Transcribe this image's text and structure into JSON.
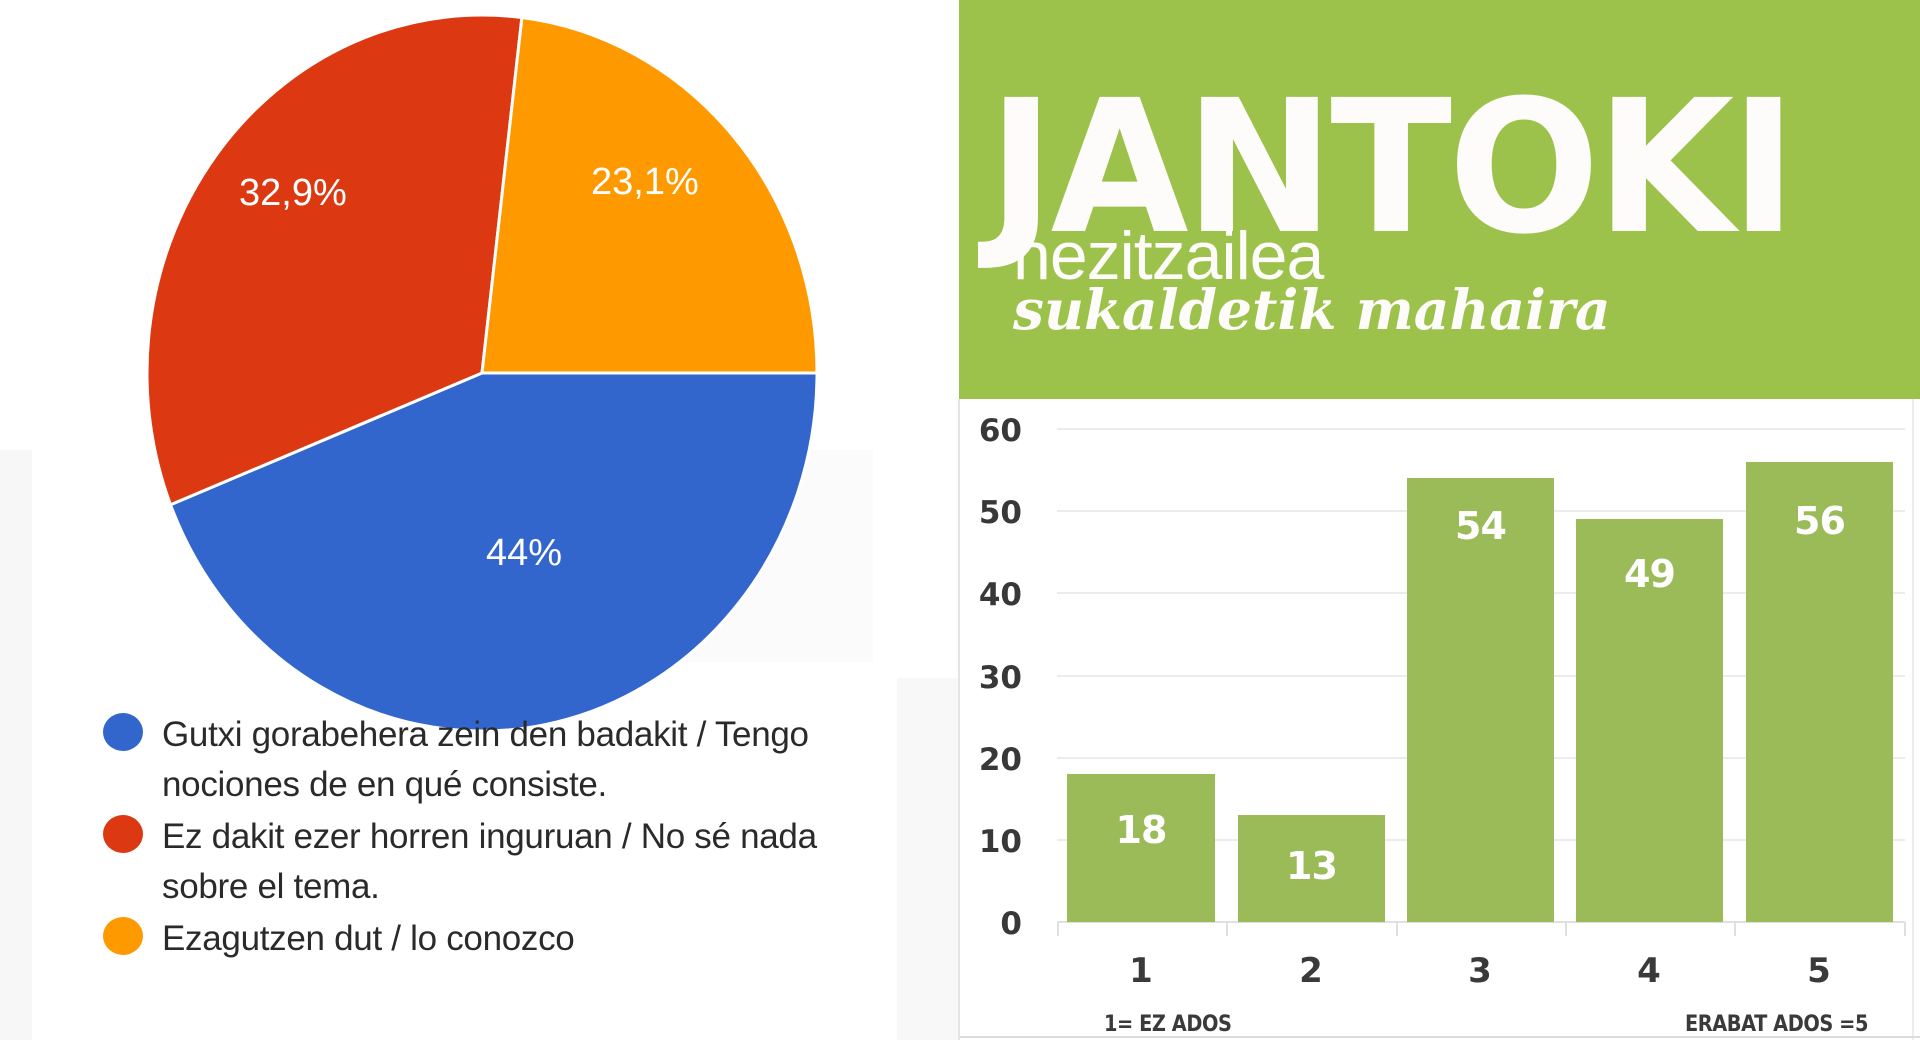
{
  "pie": {
    "slices": [
      {
        "label": "44%",
        "value": 44.0,
        "color": "#3366cc"
      },
      {
        "label": "32,9%",
        "value": 32.9,
        "color": "#dc3912"
      },
      {
        "label": "23,1%",
        "value": 23.1,
        "color": "#ff9900"
      }
    ],
    "legend": [
      {
        "text": "Gutxi gorabehera zein den badakit / Tengo nociones de en qué consiste.",
        "color": "#3366cc"
      },
      {
        "text": "Ez dakit ezer horren inguruan / No sé nada sobre el tema.",
        "color": "#dc3912"
      },
      {
        "text": "Ezagutzen dut / lo conozco",
        "color": "#ff9900"
      }
    ]
  },
  "brand": {
    "title": "JANTOKI",
    "subtitle": "hezitzailea",
    "tagline": "sukaldetik mahaira",
    "color": "#9cc24c"
  },
  "bar": {
    "y_ticks": [
      "60",
      "50",
      "40",
      "30",
      "20",
      "10",
      "0"
    ],
    "categories": [
      "1",
      "2",
      "3",
      "4",
      "5"
    ],
    "values": [
      "18",
      "13",
      "54",
      "49",
      "56"
    ],
    "note_left": "1= EZ ADOS",
    "note_right": "ERABAT ADOS =5",
    "color": "#9bbb59"
  },
  "chart_data": [
    {
      "type": "pie",
      "title": "",
      "categories": [
        "Gutxi gorabehera zein den badakit / Tengo nociones de en qué consiste.",
        "Ez dakit ezer horren inguruan / No sé nada sobre el tema.",
        "Ezagutzen dut / lo conozco"
      ],
      "values": [
        44.0,
        32.9,
        23.1
      ],
      "labels": [
        "44%",
        "32,9%",
        "23,1%"
      ],
      "colors": [
        "#3366cc",
        "#dc3912",
        "#ff9900"
      ],
      "legend_position": "bottom"
    },
    {
      "type": "bar",
      "title": "JANTOKI hezitzailea sukaldetik mahaira",
      "categories": [
        "1",
        "2",
        "3",
        "4",
        "5"
      ],
      "values": [
        18,
        13,
        54,
        49,
        56
      ],
      "xlabel": "1= EZ ADOS … ERABAT ADOS =5",
      "ylabel": "",
      "ylim": [
        0,
        60
      ],
      "yticks": [
        0,
        10,
        20,
        30,
        40,
        50,
        60
      ],
      "grid": true,
      "data_labels": true,
      "color": "#9bbb59"
    }
  ]
}
